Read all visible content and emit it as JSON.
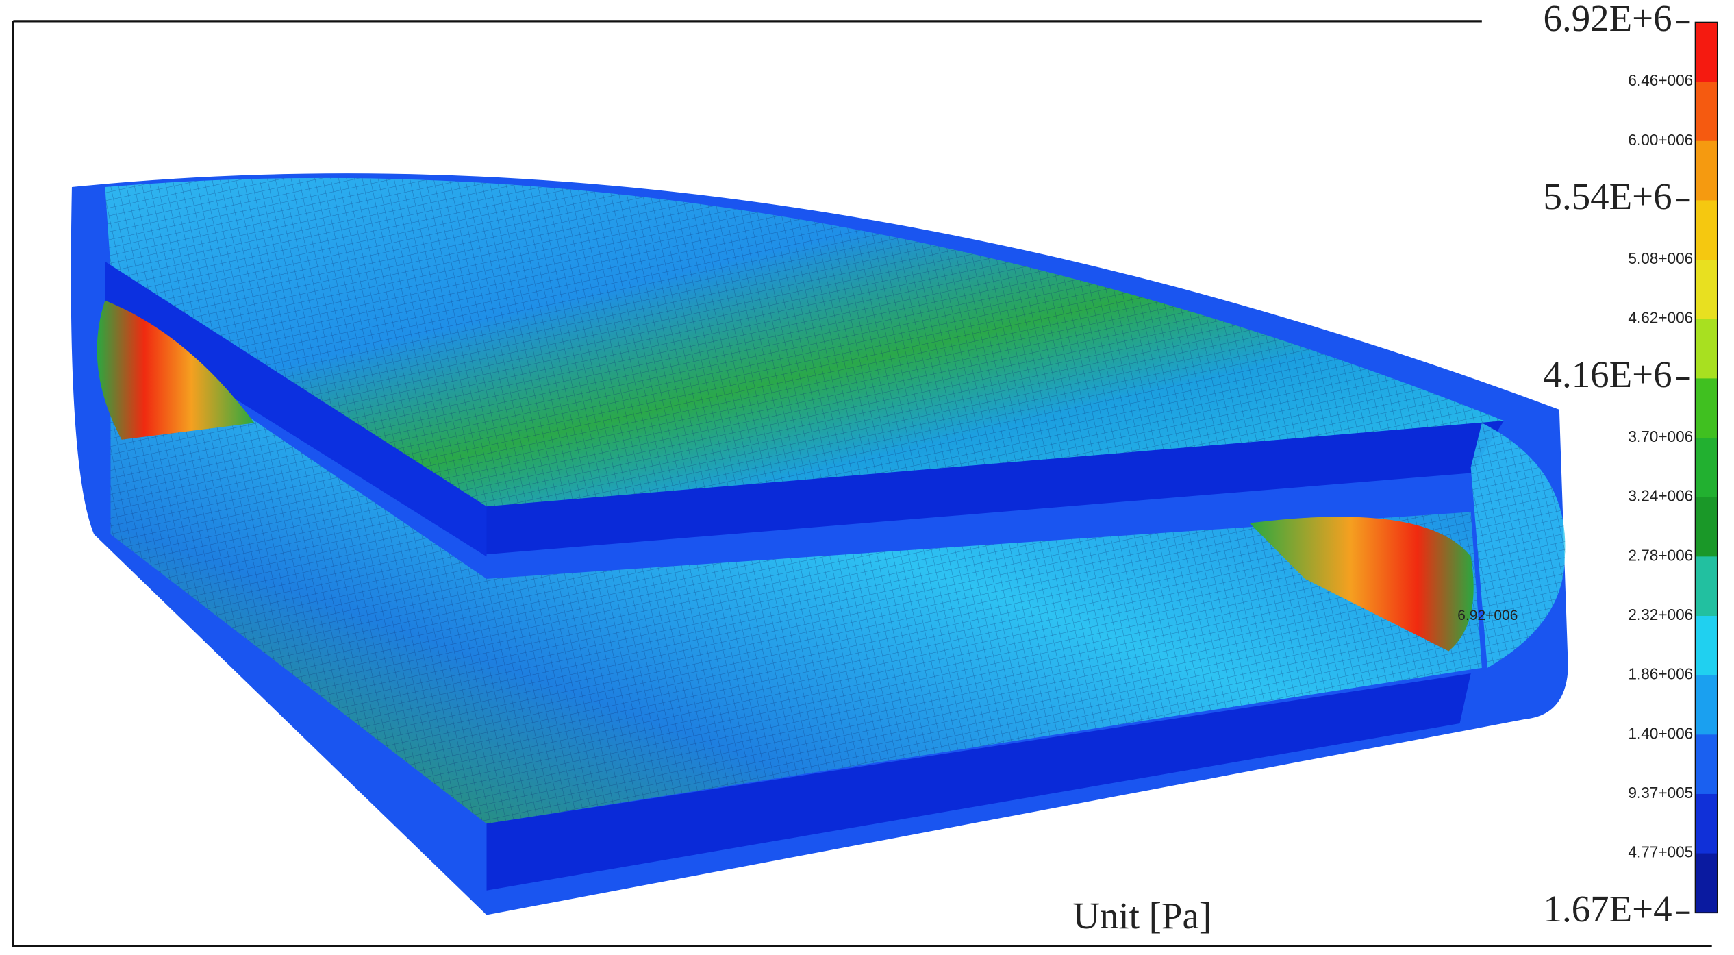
{
  "legend": {
    "labels": [
      "6.92E+6",
      "6.46+006",
      "6.00+006",
      "5.54E+6",
      "5.08+006",
      "4.62+006",
      "4.16E+6",
      "3.70+006",
      "3.24+006",
      "2.78+006",
      "2.32+006",
      "1.86+006",
      "1.40+006",
      "9.37+005",
      "4.77+005",
      "1.67E+4"
    ]
  },
  "annotation": "6.92+006",
  "unit_label": "Unit [Pa]"
}
